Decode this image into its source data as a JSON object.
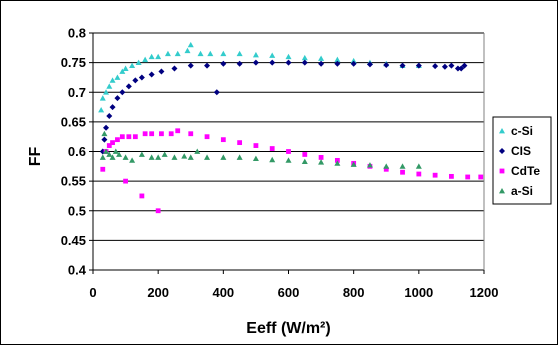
{
  "chart_data": {
    "type": "scatter",
    "title": "",
    "xlabel": "Eeff (W/m²)",
    "ylabel": "FF",
    "xlim": [
      0,
      1200
    ],
    "ylim": [
      0.4,
      0.8
    ],
    "x_ticks": [
      0,
      200,
      400,
      600,
      800,
      1000,
      1200
    ],
    "y_ticks": [
      0.4,
      0.45,
      0.5,
      0.55,
      0.6,
      0.65,
      0.7,
      0.75,
      0.8
    ],
    "y_tick_labels": [
      "0.4",
      "0.45",
      "0.5",
      "0.55",
      "0.6",
      "0.65",
      "0.7",
      "0.75",
      "0.8"
    ],
    "grid": "horizontal",
    "legend_position": "right",
    "series": [
      {
        "name": "c-Si",
        "marker": "triangle",
        "color": "#33CCCC",
        "points": [
          [
            25,
            0.67
          ],
          [
            30,
            0.69
          ],
          [
            40,
            0.7
          ],
          [
            50,
            0.71
          ],
          [
            60,
            0.72
          ],
          [
            75,
            0.725
          ],
          [
            90,
            0.735
          ],
          [
            100,
            0.74
          ],
          [
            120,
            0.745
          ],
          [
            140,
            0.75
          ],
          [
            160,
            0.755
          ],
          [
            180,
            0.76
          ],
          [
            200,
            0.76
          ],
          [
            230,
            0.765
          ],
          [
            260,
            0.765
          ],
          [
            290,
            0.77
          ],
          [
            300,
            0.78
          ],
          [
            330,
            0.765
          ],
          [
            360,
            0.765
          ],
          [
            400,
            0.765
          ],
          [
            450,
            0.765
          ],
          [
            500,
            0.763
          ],
          [
            550,
            0.762
          ],
          [
            600,
            0.76
          ],
          [
            650,
            0.758
          ],
          [
            700,
            0.757
          ],
          [
            750,
            0.755
          ],
          [
            800,
            0.753
          ],
          [
            850,
            0.75
          ],
          [
            900,
            0.748
          ],
          [
            950,
            0.745
          ],
          [
            1000,
            0.745
          ]
        ]
      },
      {
        "name": "CIS",
        "marker": "diamond",
        "color": "#000080",
        "points": [
          [
            30,
            0.6
          ],
          [
            35,
            0.62
          ],
          [
            40,
            0.64
          ],
          [
            50,
            0.66
          ],
          [
            60,
            0.675
          ],
          [
            75,
            0.69
          ],
          [
            90,
            0.7
          ],
          [
            110,
            0.71
          ],
          [
            130,
            0.72
          ],
          [
            150,
            0.725
          ],
          [
            180,
            0.73
          ],
          [
            210,
            0.735
          ],
          [
            250,
            0.74
          ],
          [
            300,
            0.745
          ],
          [
            350,
            0.745
          ],
          [
            380,
            0.7
          ],
          [
            400,
            0.748
          ],
          [
            450,
            0.748
          ],
          [
            500,
            0.75
          ],
          [
            550,
            0.75
          ],
          [
            600,
            0.75
          ],
          [
            650,
            0.75
          ],
          [
            700,
            0.748
          ],
          [
            750,
            0.748
          ],
          [
            800,
            0.748
          ],
          [
            850,
            0.747
          ],
          [
            900,
            0.746
          ],
          [
            950,
            0.745
          ],
          [
            1000,
            0.745
          ],
          [
            1050,
            0.744
          ],
          [
            1080,
            0.743
          ],
          [
            1100,
            0.745
          ],
          [
            1120,
            0.74
          ],
          [
            1130,
            0.74
          ],
          [
            1140,
            0.745
          ]
        ]
      },
      {
        "name": "CdTe",
        "marker": "square",
        "color": "#FF00FF",
        "points": [
          [
            30,
            0.57
          ],
          [
            40,
            0.6
          ],
          [
            50,
            0.61
          ],
          [
            60,
            0.615
          ],
          [
            75,
            0.62
          ],
          [
            90,
            0.625
          ],
          [
            100,
            0.55
          ],
          [
            110,
            0.625
          ],
          [
            130,
            0.625
          ],
          [
            150,
            0.525
          ],
          [
            160,
            0.63
          ],
          [
            180,
            0.63
          ],
          [
            200,
            0.5
          ],
          [
            210,
            0.63
          ],
          [
            240,
            0.63
          ],
          [
            260,
            0.635
          ],
          [
            300,
            0.63
          ],
          [
            350,
            0.625
          ],
          [
            400,
            0.62
          ],
          [
            450,
            0.615
          ],
          [
            500,
            0.61
          ],
          [
            550,
            0.605
          ],
          [
            600,
            0.6
          ],
          [
            650,
            0.595
          ],
          [
            700,
            0.59
          ],
          [
            750,
            0.585
          ],
          [
            800,
            0.58
          ],
          [
            850,
            0.575
          ],
          [
            900,
            0.57
          ],
          [
            950,
            0.565
          ],
          [
            1000,
            0.562
          ],
          [
            1050,
            0.56
          ],
          [
            1100,
            0.558
          ],
          [
            1150,
            0.557
          ],
          [
            1190,
            0.557
          ]
        ]
      },
      {
        "name": "a-Si",
        "marker": "triangle",
        "color": "#339966",
        "points": [
          [
            30,
            0.59
          ],
          [
            35,
            0.63
          ],
          [
            40,
            0.6
          ],
          [
            50,
            0.595
          ],
          [
            60,
            0.59
          ],
          [
            70,
            0.6
          ],
          [
            80,
            0.595
          ],
          [
            100,
            0.59
          ],
          [
            120,
            0.585
          ],
          [
            150,
            0.595
          ],
          [
            180,
            0.59
          ],
          [
            200,
            0.59
          ],
          [
            220,
            0.595
          ],
          [
            250,
            0.59
          ],
          [
            280,
            0.592
          ],
          [
            300,
            0.59
          ],
          [
            320,
            0.6
          ],
          [
            350,
            0.59
          ],
          [
            400,
            0.59
          ],
          [
            450,
            0.59
          ],
          [
            500,
            0.588
          ],
          [
            550,
            0.586
          ],
          [
            600,
            0.585
          ],
          [
            650,
            0.583
          ],
          [
            700,
            0.582
          ],
          [
            750,
            0.58
          ],
          [
            800,
            0.578
          ],
          [
            850,
            0.577
          ],
          [
            900,
            0.575
          ],
          [
            950,
            0.575
          ],
          [
            1000,
            0.575
          ]
        ]
      }
    ]
  }
}
